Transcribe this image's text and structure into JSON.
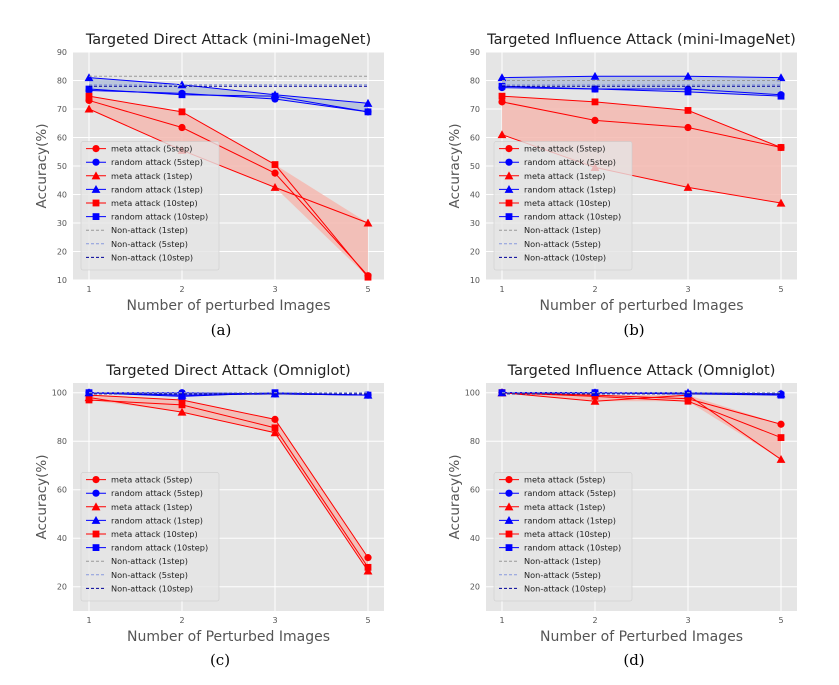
{
  "colors": {
    "plot_bg": "#e5e5e5",
    "grid": "#ffffff",
    "meta": "#ff0000",
    "meta_fill": "#f5b8b0",
    "random": "#0000ff",
    "random_fill": "#b3bfd9",
    "nonattack_1": "#999999",
    "nonattack_5": "#8899dd",
    "nonattack_10": "#000099"
  },
  "captions": [
    "(a)",
    "(b)",
    "(c)",
    "(d)"
  ],
  "chart_data": [
    {
      "type": "line",
      "title": "Targeted Direct Attack (mini-ImageNet)",
      "xlabel": "Number of perturbed Images",
      "ylabel": "Accuracy(%)",
      "categories": [
        "1",
        "2",
        "3",
        "5"
      ],
      "yticks": [
        "10",
        "20",
        "30",
        "40",
        "50",
        "60",
        "70",
        "80",
        "90"
      ],
      "ylim": [
        10,
        90
      ],
      "grid": true,
      "legend_position": "lower-left",
      "series": [
        {
          "name": "meta attack (5step)",
          "color": "#ff0000",
          "marker": "circle",
          "values": [
            73,
            63.5,
            47.5,
            11.5
          ]
        },
        {
          "name": "random attack (5step)",
          "color": "#0000ff",
          "marker": "circle",
          "values": [
            76.5,
            75.5,
            73.5,
            69
          ]
        },
        {
          "name": "meta attack (1step)",
          "color": "#ff0000",
          "marker": "triangle",
          "values": [
            70,
            55.5,
            42.5,
            30
          ]
        },
        {
          "name": "random attack (1step)",
          "color": "#0000ff",
          "marker": "triangle",
          "values": [
            81,
            78.5,
            75,
            72
          ]
        },
        {
          "name": "meta attack (10step)",
          "color": "#ff0000",
          "marker": "square",
          "values": [
            74.5,
            69,
            50.5,
            11
          ]
        },
        {
          "name": "random attack (10step)",
          "color": "#0000ff",
          "marker": "square",
          "values": [
            77,
            75,
            74.5,
            69
          ]
        },
        {
          "name": "Non-attack (1step)",
          "color": "#999999",
          "style": "dashed",
          "values": [
            81.5,
            81.5,
            81.5,
            81.5
          ]
        },
        {
          "name": "Non-attack (5step)",
          "color": "#8899dd",
          "style": "dashed",
          "values": [
            78.5,
            78.5,
            78.5,
            78.5
          ]
        },
        {
          "name": "Non-attack (10step)",
          "color": "#000099",
          "style": "dashed",
          "values": [
            78,
            78,
            78,
            78
          ]
        }
      ]
    },
    {
      "type": "line",
      "title": "Targeted  Influence Attack (mini-ImageNet)",
      "xlabel": "Number of perturbed Images",
      "ylabel": "Accuracy(%)",
      "categories": [
        "1",
        "2",
        "3",
        "5"
      ],
      "yticks": [
        "10",
        "20",
        "30",
        "40",
        "50",
        "60",
        "70",
        "80",
        "90"
      ],
      "ylim": [
        10,
        90
      ],
      "grid": true,
      "legend_position": "lower-left",
      "series": [
        {
          "name": "meta attack (5step)",
          "color": "#ff0000",
          "marker": "circle",
          "values": [
            72.5,
            66,
            63.5,
            56.5
          ]
        },
        {
          "name": "random attack (5step)",
          "color": "#0000ff",
          "marker": "circle",
          "values": [
            77.5,
            77,
            77,
            75
          ]
        },
        {
          "name": "meta attack (1step)",
          "color": "#ff0000",
          "marker": "triangle",
          "values": [
            61,
            49.5,
            42.5,
            37
          ]
        },
        {
          "name": "random attack (1step)",
          "color": "#0000ff",
          "marker": "triangle",
          "values": [
            81,
            81.5,
            81.5,
            81
          ]
        },
        {
          "name": "meta attack (10step)",
          "color": "#ff0000",
          "marker": "square",
          "values": [
            74.5,
            72.5,
            69.5,
            56.5
          ]
        },
        {
          "name": "random attack (10step)",
          "color": "#0000ff",
          "marker": "square",
          "values": [
            78,
            77,
            76,
            74.5
          ]
        },
        {
          "name": "Non-attack (1step)",
          "color": "#999999",
          "style": "dashed",
          "values": [
            80,
            80,
            80,
            80
          ]
        },
        {
          "name": "Non-attack (5step)",
          "color": "#8899dd",
          "style": "dashed",
          "values": [
            78.5,
            78.5,
            78.5,
            78.5
          ]
        },
        {
          "name": "Non-attack (10step)",
          "color": "#000099",
          "style": "dashed",
          "values": [
            78,
            78,
            78,
            78
          ]
        }
      ]
    },
    {
      "type": "line",
      "title": "Targeted Direct Attack (Omniglot)",
      "xlabel": "Number of Perturbed Images",
      "ylabel": "Accuracy(%)",
      "categories": [
        "1",
        "2",
        "3",
        "5"
      ],
      "yticks": [
        "20",
        "40",
        "60",
        "80",
        "100"
      ],
      "ylim": [
        10,
        104
      ],
      "grid": true,
      "legend_position": "lower-left",
      "series": [
        {
          "name": "meta attack (5step)",
          "color": "#ff0000",
          "marker": "circle",
          "values": [
            99,
            97,
            89,
            32
          ]
        },
        {
          "name": "random attack (5step)",
          "color": "#0000ff",
          "marker": "circle",
          "values": [
            100,
            100,
            99.5,
            99
          ]
        },
        {
          "name": "meta attack (1step)",
          "color": "#ff0000",
          "marker": "triangle",
          "values": [
            98,
            92,
            83.5,
            26.5
          ]
        },
        {
          "name": "random attack (1step)",
          "color": "#0000ff",
          "marker": "triangle",
          "values": [
            100,
            99,
            99.5,
            99
          ]
        },
        {
          "name": "meta attack (10step)",
          "color": "#ff0000",
          "marker": "square",
          "values": [
            97,
            95,
            85.5,
            28
          ]
        },
        {
          "name": "random attack (10step)",
          "color": "#0000ff",
          "marker": "square",
          "values": [
            100,
            98.5,
            100,
            99
          ]
        },
        {
          "name": "Non-attack (1step)",
          "color": "#999999",
          "style": "dashed",
          "values": [
            100,
            100,
            100,
            100
          ]
        },
        {
          "name": "Non-attack (5step)",
          "color": "#8899dd",
          "style": "dashed",
          "values": [
            100,
            100,
            100,
            100
          ]
        },
        {
          "name": "Non-attack (10step)",
          "color": "#000099",
          "style": "dashed",
          "values": [
            99.5,
            99.5,
            99.5,
            99.5
          ]
        }
      ]
    },
    {
      "type": "line",
      "title": "Targeted  Influence Attack (Omniglot)",
      "xlabel": "Number of Perturbed Images",
      "ylabel": "Accuracy(%)",
      "categories": [
        "1",
        "2",
        "3",
        "5"
      ],
      "yticks": [
        "20",
        "40",
        "60",
        "80",
        "100"
      ],
      "ylim": [
        10,
        104
      ],
      "grid": true,
      "legend_position": "lower-left",
      "series": [
        {
          "name": "meta attack (5step)",
          "color": "#ff0000",
          "marker": "circle",
          "values": [
            100,
            99,
            97.5,
            87
          ]
        },
        {
          "name": "random attack (5step)",
          "color": "#0000ff",
          "marker": "circle",
          "values": [
            100,
            100,
            99.5,
            99.5
          ]
        },
        {
          "name": "meta attack (1step)",
          "color": "#ff0000",
          "marker": "triangle",
          "values": [
            100,
            96.5,
            99,
            72.5
          ]
        },
        {
          "name": "random attack (1step)",
          "color": "#0000ff",
          "marker": "triangle",
          "values": [
            100,
            100,
            100,
            99.5
          ]
        },
        {
          "name": "meta attack (10step)",
          "color": "#ff0000",
          "marker": "square",
          "values": [
            100,
            98.5,
            96.5,
            81.5
          ]
        },
        {
          "name": "random attack (10step)",
          "color": "#0000ff",
          "marker": "square",
          "values": [
            100,
            100,
            99.5,
            99
          ]
        },
        {
          "name": "Non-attack (1step)",
          "color": "#999999",
          "style": "dashed",
          "values": [
            100,
            100,
            100,
            100
          ]
        },
        {
          "name": "Non-attack (5step)",
          "color": "#8899dd",
          "style": "dashed",
          "values": [
            100,
            100,
            100,
            100
          ]
        },
        {
          "name": "Non-attack (10step)",
          "color": "#000099",
          "style": "dashed",
          "values": [
            99.5,
            99.5,
            99.5,
            99.5
          ]
        }
      ]
    }
  ]
}
